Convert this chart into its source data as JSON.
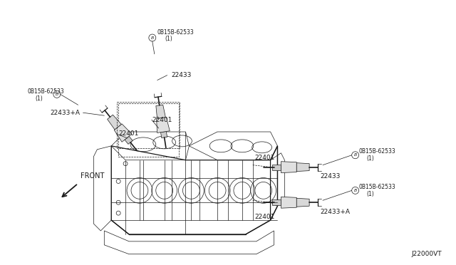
{
  "bg_color": "#ffffff",
  "line_color": "#1a1a1a",
  "fig_width": 6.4,
  "fig_height": 3.72,
  "dpi": 100,
  "watermark": "J22000VT",
  "labels": {
    "bolt1": "0B15B-62533\n(1)",
    "bolt2": "0B15B-62533\n(1)",
    "bolt3": "0B15B-62533\n(1)",
    "bolt4": "0B15B-62533\n(1)",
    "coil_LA": "22433+A",
    "coil_LB": "22433",
    "coil_RA": "22433",
    "coil_RB": "22433+A",
    "plug": "22401"
  }
}
